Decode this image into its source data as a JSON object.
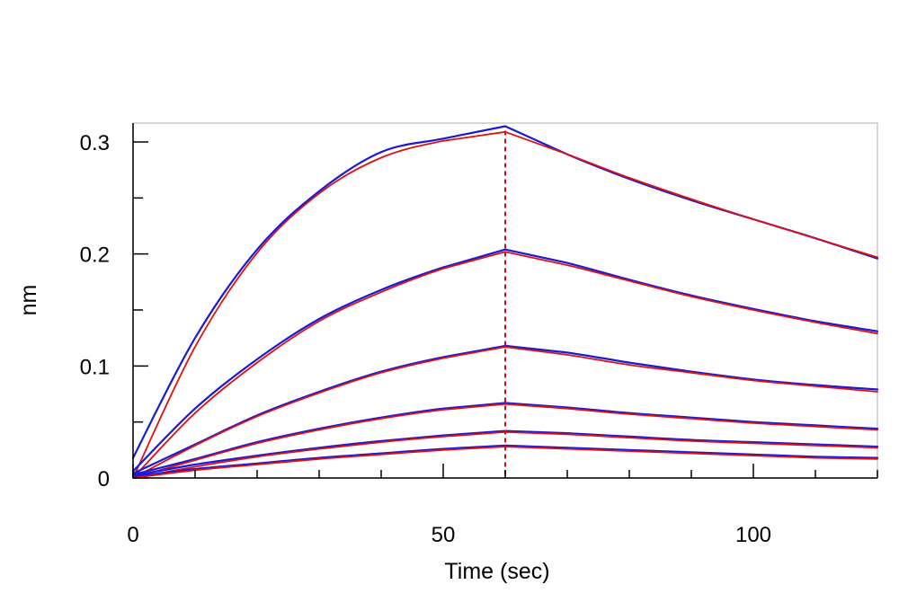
{
  "chart_data": {
    "type": "line",
    "title": "",
    "xlabel": "Time (sec)",
    "ylabel": "nm",
    "xlim": [
      0,
      120
    ],
    "ylim": [
      0,
      0.32
    ],
    "x_ticks": [
      0,
      50,
      100
    ],
    "x_tick_labels": [
      "0",
      "50",
      "100"
    ],
    "y_ticks": [
      0,
      0.1,
      0.2,
      0.3
    ],
    "y_tick_labels": [
      "0",
      "0.1",
      "0.2",
      "0.3"
    ],
    "grid": false,
    "legend": "none",
    "association_end_time": 60,
    "colors": {
      "measured": "#1a1ad6",
      "fit": "#e01010",
      "marker": "#d01010",
      "axis": "#000000",
      "frame": "#c8c8c8"
    },
    "series": [
      {
        "kind": "measured",
        "color": "#1a1ad6",
        "x": [
          0,
          10,
          20,
          30,
          40,
          50,
          60,
          70,
          80,
          90,
          100,
          110,
          120
        ],
        "values": [
          0.018,
          0.125,
          0.204,
          0.256,
          0.291,
          0.303,
          0.314,
          0.289,
          0.267,
          0.248,
          0.231,
          0.214,
          0.196
        ]
      },
      {
        "kind": "fit",
        "color": "#e01010",
        "x": [
          0,
          10,
          20,
          30,
          40,
          50,
          60,
          70,
          80,
          90,
          100,
          110,
          120
        ],
        "values": [
          0.0,
          0.117,
          0.201,
          0.254,
          0.286,
          0.301,
          0.309,
          0.289,
          0.268,
          0.249,
          0.231,
          0.214,
          0.197
        ]
      },
      {
        "kind": "measured",
        "color": "#1a1ad6",
        "x": [
          0,
          10,
          20,
          30,
          40,
          50,
          60,
          70,
          80,
          90,
          100,
          110,
          120
        ],
        "values": [
          0.006,
          0.062,
          0.106,
          0.142,
          0.168,
          0.188,
          0.204,
          0.192,
          0.177,
          0.163,
          0.151,
          0.14,
          0.131
        ]
      },
      {
        "kind": "fit",
        "color": "#e01010",
        "x": [
          0,
          10,
          20,
          30,
          40,
          50,
          60,
          70,
          80,
          90,
          100,
          110,
          120
        ],
        "values": [
          0.0,
          0.058,
          0.103,
          0.14,
          0.166,
          0.187,
          0.202,
          0.19,
          0.176,
          0.162,
          0.15,
          0.139,
          0.129
        ]
      },
      {
        "kind": "measured",
        "color": "#1a1ad6",
        "x": [
          0,
          10,
          20,
          30,
          40,
          50,
          60,
          70,
          80,
          90,
          100,
          110,
          120
        ],
        "values": [
          0.004,
          0.03,
          0.056,
          0.077,
          0.095,
          0.108,
          0.118,
          0.112,
          0.103,
          0.095,
          0.088,
          0.083,
          0.079
        ]
      },
      {
        "kind": "fit",
        "color": "#e01010",
        "x": [
          0,
          10,
          20,
          30,
          40,
          50,
          60,
          70,
          80,
          90,
          100,
          110,
          120
        ],
        "values": [
          0.0,
          0.029,
          0.055,
          0.076,
          0.094,
          0.107,
          0.117,
          0.11,
          0.101,
          0.094,
          0.087,
          0.082,
          0.077
        ]
      },
      {
        "kind": "measured",
        "color": "#1a1ad6",
        "x": [
          0,
          10,
          20,
          30,
          40,
          50,
          60,
          70,
          80,
          90,
          100,
          110,
          120
        ],
        "values": [
          0.003,
          0.017,
          0.032,
          0.044,
          0.054,
          0.062,
          0.067,
          0.063,
          0.058,
          0.054,
          0.05,
          0.047,
          0.044
        ]
      },
      {
        "kind": "fit",
        "color": "#e01010",
        "x": [
          0,
          10,
          20,
          30,
          40,
          50,
          60,
          70,
          80,
          90,
          100,
          110,
          120
        ],
        "values": [
          0.0,
          0.016,
          0.031,
          0.043,
          0.053,
          0.061,
          0.066,
          0.062,
          0.057,
          0.053,
          0.049,
          0.046,
          0.043
        ]
      },
      {
        "kind": "measured",
        "color": "#1a1ad6",
        "x": [
          0,
          10,
          20,
          30,
          40,
          50,
          60,
          70,
          80,
          90,
          100,
          110,
          120
        ],
        "values": [
          0.002,
          0.012,
          0.02,
          0.027,
          0.033,
          0.038,
          0.042,
          0.04,
          0.037,
          0.034,
          0.032,
          0.03,
          0.028
        ]
      },
      {
        "kind": "fit",
        "color": "#e01010",
        "x": [
          0,
          10,
          20,
          30,
          40,
          50,
          60,
          70,
          80,
          90,
          100,
          110,
          120
        ],
        "values": [
          0.0,
          0.01,
          0.019,
          0.026,
          0.032,
          0.037,
          0.041,
          0.039,
          0.036,
          0.033,
          0.031,
          0.029,
          0.027
        ]
      },
      {
        "kind": "measured",
        "color": "#1a1ad6",
        "x": [
          0,
          10,
          20,
          30,
          40,
          50,
          60,
          70,
          80,
          90,
          100,
          110,
          120
        ],
        "values": [
          0.001,
          0.008,
          0.013,
          0.018,
          0.022,
          0.026,
          0.029,
          0.027,
          0.025,
          0.023,
          0.021,
          0.019,
          0.018
        ]
      },
      {
        "kind": "fit",
        "color": "#e01010",
        "x": [
          0,
          10,
          20,
          30,
          40,
          50,
          60,
          70,
          80,
          90,
          100,
          110,
          120
        ],
        "values": [
          0.0,
          0.007,
          0.012,
          0.017,
          0.021,
          0.025,
          0.028,
          0.026,
          0.024,
          0.022,
          0.02,
          0.018,
          0.017
        ]
      }
    ]
  }
}
